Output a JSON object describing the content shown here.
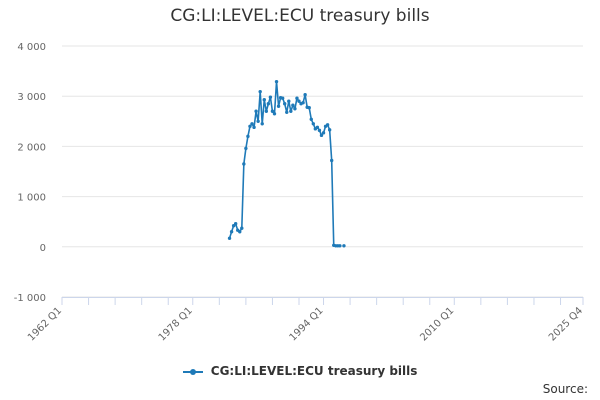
{
  "chart_data": {
    "type": "line",
    "title": "CG:LI:LEVEL:ECU treasury bills",
    "xlabel": "",
    "ylabel": "",
    "ylim": [
      -1000,
      4000
    ],
    "y_ticks": [
      4000,
      3000,
      2000,
      1000,
      0,
      -1000
    ],
    "y_tick_labels": [
      "4 000",
      "3 000",
      "2 000",
      "1 000",
      "0",
      "-1 000"
    ],
    "xlim": [
      1962.0,
      2025.75
    ],
    "x_major_ticks": [
      1962.0,
      1978.0,
      1994.0,
      2010.0,
      2025.75
    ],
    "x_tick_labels": [
      "1962 Q1",
      "1978 Q1",
      "1994 Q1",
      "2010 Q1",
      "2025 Q4"
    ],
    "x_minor_ticks": [
      1962.0,
      1965.25,
      1968.5,
      1971.75,
      1975.0,
      1978.0,
      1981.25,
      1984.5,
      1987.75,
      1991.0,
      1994.0,
      1997.25,
      2000.5,
      2003.75,
      2007.0,
      2010.0,
      2013.25,
      2016.5,
      2019.75,
      2023.0,
      2025.75
    ],
    "grid": true,
    "legend_position": "bottom",
    "series": [
      {
        "name": "CG:LI:LEVEL:ECU treasury bills",
        "color": "#1f7ab8",
        "points": [
          [
            1982.5,
            170
          ],
          [
            1982.75,
            300
          ],
          [
            1983.0,
            420
          ],
          [
            1983.25,
            460
          ],
          [
            1983.5,
            330
          ],
          [
            1983.75,
            300
          ],
          [
            1984.0,
            370
          ],
          [
            1984.25,
            1650
          ],
          [
            1984.5,
            1960
          ],
          [
            1984.75,
            2200
          ],
          [
            1985.0,
            2400
          ],
          [
            1985.25,
            2450
          ],
          [
            1985.5,
            2380
          ],
          [
            1985.75,
            2700
          ],
          [
            1986.0,
            2500
          ],
          [
            1986.25,
            3090
          ],
          [
            1986.5,
            2450
          ],
          [
            1986.75,
            2930
          ],
          [
            1987.0,
            2700
          ],
          [
            1987.25,
            2850
          ],
          [
            1987.5,
            2980
          ],
          [
            1987.75,
            2700
          ],
          [
            1988.0,
            2650
          ],
          [
            1988.25,
            3290
          ],
          [
            1988.5,
            2800
          ],
          [
            1988.75,
            2970
          ],
          [
            1989.0,
            2960
          ],
          [
            1989.25,
            2850
          ],
          [
            1989.5,
            2680
          ],
          [
            1989.75,
            2900
          ],
          [
            1990.0,
            2700
          ],
          [
            1990.25,
            2820
          ],
          [
            1990.5,
            2750
          ],
          [
            1990.75,
            2960
          ],
          [
            1991.0,
            2900
          ],
          [
            1991.25,
            2850
          ],
          [
            1991.5,
            2870
          ],
          [
            1991.75,
            3030
          ],
          [
            1992.0,
            2780
          ],
          [
            1992.25,
            2770
          ],
          [
            1992.5,
            2540
          ],
          [
            1992.75,
            2450
          ],
          [
            1993.0,
            2350
          ],
          [
            1993.25,
            2380
          ],
          [
            1993.5,
            2320
          ],
          [
            1993.75,
            2220
          ],
          [
            1994.0,
            2270
          ],
          [
            1994.25,
            2400
          ],
          [
            1994.5,
            2430
          ],
          [
            1994.75,
            2330
          ],
          [
            1995.0,
            1720
          ],
          [
            1995.25,
            30
          ],
          [
            1995.5,
            20
          ],
          [
            1995.75,
            20
          ],
          [
            1996.0,
            20
          ],
          [
            1996.5,
            20
          ]
        ]
      }
    ]
  },
  "legend": {
    "label": "CG:LI:LEVEL:ECU treasury bills"
  },
  "footer": {
    "source_label": "Source:"
  }
}
